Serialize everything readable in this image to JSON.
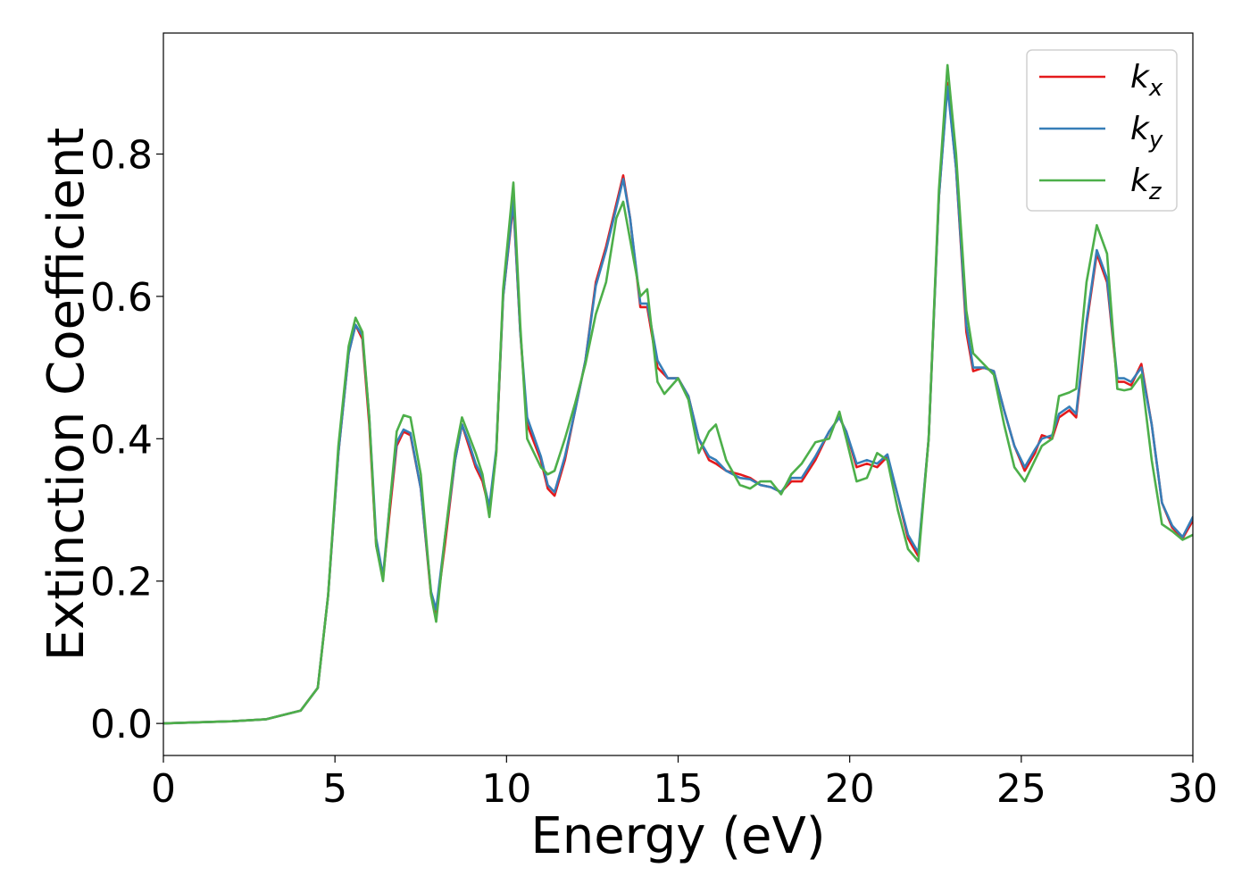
{
  "chart_data": {
    "type": "line",
    "title": "",
    "xlabel": "Energy (eV)",
    "ylabel": "Extinction Coefficient",
    "xlim": [
      0,
      30
    ],
    "ylim": [
      -0.045,
      0.97
    ],
    "xticks": [
      0,
      5,
      10,
      15,
      20,
      25,
      30
    ],
    "xtick_labels": [
      "0",
      "5",
      "10",
      "15",
      "20",
      "25",
      "30"
    ],
    "yticks": [
      0.0,
      0.2,
      0.4,
      0.6,
      0.8
    ],
    "ytick_labels": [
      "0.0",
      "0.2",
      "0.4",
      "0.6",
      "0.8"
    ],
    "grid": false,
    "legend_position": "top-right",
    "series": [
      {
        "name": "k_x",
        "legend_base": "k",
        "legend_sub": "x",
        "color": "#e41a1c",
        "points": [
          [
            0,
            0
          ],
          [
            2,
            0.003
          ],
          [
            3,
            0.006
          ],
          [
            4,
            0.018
          ],
          [
            4.5,
            0.05
          ],
          [
            4.8,
            0.18
          ],
          [
            5.1,
            0.38
          ],
          [
            5.4,
            0.52
          ],
          [
            5.6,
            0.56
          ],
          [
            5.8,
            0.54
          ],
          [
            6.0,
            0.42
          ],
          [
            6.2,
            0.25
          ],
          [
            6.4,
            0.205
          ],
          [
            6.6,
            0.3
          ],
          [
            6.8,
            0.39
          ],
          [
            7.0,
            0.41
          ],
          [
            7.2,
            0.405
          ],
          [
            7.5,
            0.33
          ],
          [
            7.8,
            0.18
          ],
          [
            7.95,
            0.155
          ],
          [
            8.2,
            0.25
          ],
          [
            8.5,
            0.37
          ],
          [
            8.7,
            0.42
          ],
          [
            8.9,
            0.39
          ],
          [
            9.1,
            0.36
          ],
          [
            9.3,
            0.34
          ],
          [
            9.5,
            0.3
          ],
          [
            9.7,
            0.38
          ],
          [
            9.9,
            0.6
          ],
          [
            10.2,
            0.73
          ],
          [
            10.4,
            0.55
          ],
          [
            10.6,
            0.42
          ],
          [
            11.0,
            0.37
          ],
          [
            11.2,
            0.33
          ],
          [
            11.4,
            0.32
          ],
          [
            11.7,
            0.37
          ],
          [
            12.0,
            0.44
          ],
          [
            12.3,
            0.51
          ],
          [
            12.6,
            0.62
          ],
          [
            12.9,
            0.67
          ],
          [
            13.2,
            0.73
          ],
          [
            13.4,
            0.77
          ],
          [
            13.6,
            0.71
          ],
          [
            13.9,
            0.585
          ],
          [
            14.1,
            0.585
          ],
          [
            14.4,
            0.5
          ],
          [
            14.7,
            0.485
          ],
          [
            15.0,
            0.485
          ],
          [
            15.3,
            0.46
          ],
          [
            15.6,
            0.4
          ],
          [
            15.9,
            0.37
          ],
          [
            16.1,
            0.365
          ],
          [
            16.4,
            0.355
          ],
          [
            16.8,
            0.35
          ],
          [
            17.1,
            0.345
          ],
          [
            17.4,
            0.335
          ],
          [
            17.7,
            0.332
          ],
          [
            18.0,
            0.325
          ],
          [
            18.3,
            0.34
          ],
          [
            18.6,
            0.34
          ],
          [
            19.0,
            0.37
          ],
          [
            19.4,
            0.41
          ],
          [
            19.7,
            0.43
          ],
          [
            19.9,
            0.41
          ],
          [
            20.2,
            0.36
          ],
          [
            20.5,
            0.365
          ],
          [
            20.8,
            0.36
          ],
          [
            21.1,
            0.375
          ],
          [
            21.4,
            0.32
          ],
          [
            21.7,
            0.26
          ],
          [
            22.0,
            0.235
          ],
          [
            22.3,
            0.4
          ],
          [
            22.6,
            0.74
          ],
          [
            22.85,
            0.9
          ],
          [
            23.1,
            0.78
          ],
          [
            23.4,
            0.55
          ],
          [
            23.6,
            0.495
          ],
          [
            23.9,
            0.5
          ],
          [
            24.2,
            0.495
          ],
          [
            24.5,
            0.44
          ],
          [
            24.8,
            0.39
          ],
          [
            25.1,
            0.355
          ],
          [
            25.4,
            0.38
          ],
          [
            25.6,
            0.405
          ],
          [
            25.9,
            0.4
          ],
          [
            26.1,
            0.43
          ],
          [
            26.4,
            0.44
          ],
          [
            26.6,
            0.43
          ],
          [
            26.9,
            0.56
          ],
          [
            27.2,
            0.66
          ],
          [
            27.5,
            0.62
          ],
          [
            27.8,
            0.48
          ],
          [
            28.0,
            0.48
          ],
          [
            28.2,
            0.475
          ],
          [
            28.5,
            0.505
          ],
          [
            28.8,
            0.42
          ],
          [
            29.1,
            0.31
          ],
          [
            29.4,
            0.275
          ],
          [
            29.7,
            0.26
          ],
          [
            30.0,
            0.285
          ]
        ]
      },
      {
        "name": "k_y",
        "legend_base": "k",
        "legend_sub": "y",
        "color": "#377eb8",
        "points": [
          [
            0,
            0
          ],
          [
            2,
            0.003
          ],
          [
            3,
            0.006
          ],
          [
            4,
            0.018
          ],
          [
            4.5,
            0.05
          ],
          [
            4.8,
            0.18
          ],
          [
            5.1,
            0.38
          ],
          [
            5.4,
            0.52
          ],
          [
            5.6,
            0.56
          ],
          [
            5.8,
            0.545
          ],
          [
            6.0,
            0.43
          ],
          [
            6.2,
            0.26
          ],
          [
            6.4,
            0.207
          ],
          [
            6.6,
            0.31
          ],
          [
            6.8,
            0.395
          ],
          [
            7.0,
            0.413
          ],
          [
            7.2,
            0.408
          ],
          [
            7.5,
            0.33
          ],
          [
            7.8,
            0.185
          ],
          [
            7.95,
            0.16
          ],
          [
            8.2,
            0.26
          ],
          [
            8.5,
            0.37
          ],
          [
            8.7,
            0.42
          ],
          [
            8.9,
            0.395
          ],
          [
            9.1,
            0.365
          ],
          [
            9.3,
            0.345
          ],
          [
            9.5,
            0.305
          ],
          [
            9.7,
            0.385
          ],
          [
            9.9,
            0.6
          ],
          [
            10.2,
            0.735
          ],
          [
            10.4,
            0.55
          ],
          [
            10.6,
            0.43
          ],
          [
            11.0,
            0.375
          ],
          [
            11.2,
            0.335
          ],
          [
            11.4,
            0.325
          ],
          [
            11.7,
            0.375
          ],
          [
            12.0,
            0.44
          ],
          [
            12.3,
            0.51
          ],
          [
            12.6,
            0.615
          ],
          [
            12.9,
            0.665
          ],
          [
            13.2,
            0.725
          ],
          [
            13.4,
            0.765
          ],
          [
            13.6,
            0.71
          ],
          [
            13.9,
            0.59
          ],
          [
            14.1,
            0.59
          ],
          [
            14.4,
            0.51
          ],
          [
            14.7,
            0.485
          ],
          [
            15.0,
            0.485
          ],
          [
            15.3,
            0.46
          ],
          [
            15.6,
            0.4
          ],
          [
            15.9,
            0.375
          ],
          [
            16.1,
            0.37
          ],
          [
            16.4,
            0.355
          ],
          [
            16.8,
            0.345
          ],
          [
            17.1,
            0.343
          ],
          [
            17.4,
            0.335
          ],
          [
            17.7,
            0.332
          ],
          [
            18.0,
            0.325
          ],
          [
            18.3,
            0.345
          ],
          [
            18.6,
            0.345
          ],
          [
            19.0,
            0.375
          ],
          [
            19.4,
            0.41
          ],
          [
            19.7,
            0.43
          ],
          [
            19.9,
            0.41
          ],
          [
            20.2,
            0.365
          ],
          [
            20.5,
            0.37
          ],
          [
            20.8,
            0.365
          ],
          [
            21.1,
            0.378
          ],
          [
            21.4,
            0.32
          ],
          [
            21.7,
            0.265
          ],
          [
            22.0,
            0.24
          ],
          [
            22.3,
            0.4
          ],
          [
            22.6,
            0.74
          ],
          [
            22.85,
            0.895
          ],
          [
            23.1,
            0.78
          ],
          [
            23.4,
            0.56
          ],
          [
            23.6,
            0.5
          ],
          [
            23.9,
            0.5
          ],
          [
            24.2,
            0.495
          ],
          [
            24.5,
            0.44
          ],
          [
            24.8,
            0.39
          ],
          [
            25.1,
            0.36
          ],
          [
            25.4,
            0.385
          ],
          [
            25.6,
            0.4
          ],
          [
            25.9,
            0.405
          ],
          [
            26.1,
            0.435
          ],
          [
            26.4,
            0.445
          ],
          [
            26.6,
            0.435
          ],
          [
            26.9,
            0.565
          ],
          [
            27.2,
            0.665
          ],
          [
            27.5,
            0.625
          ],
          [
            27.8,
            0.485
          ],
          [
            28.0,
            0.485
          ],
          [
            28.2,
            0.48
          ],
          [
            28.5,
            0.5
          ],
          [
            28.8,
            0.42
          ],
          [
            29.1,
            0.31
          ],
          [
            29.4,
            0.278
          ],
          [
            29.7,
            0.262
          ],
          [
            30.0,
            0.29
          ]
        ]
      },
      {
        "name": "k_z",
        "legend_base": "k",
        "legend_sub": "z",
        "color": "#4daf4a",
        "points": [
          [
            0,
            0
          ],
          [
            2,
            0.003
          ],
          [
            3,
            0.006
          ],
          [
            4,
            0.018
          ],
          [
            4.5,
            0.05
          ],
          [
            4.8,
            0.18
          ],
          [
            5.1,
            0.39
          ],
          [
            5.4,
            0.53
          ],
          [
            5.6,
            0.57
          ],
          [
            5.8,
            0.55
          ],
          [
            6.0,
            0.43
          ],
          [
            6.2,
            0.25
          ],
          [
            6.4,
            0.2
          ],
          [
            6.6,
            0.31
          ],
          [
            6.8,
            0.41
          ],
          [
            7.0,
            0.433
          ],
          [
            7.2,
            0.43
          ],
          [
            7.5,
            0.35
          ],
          [
            7.8,
            0.18
          ],
          [
            7.95,
            0.143
          ],
          [
            8.2,
            0.26
          ],
          [
            8.5,
            0.38
          ],
          [
            8.7,
            0.43
          ],
          [
            8.9,
            0.405
          ],
          [
            9.1,
            0.38
          ],
          [
            9.3,
            0.35
          ],
          [
            9.5,
            0.29
          ],
          [
            9.7,
            0.38
          ],
          [
            9.9,
            0.61
          ],
          [
            10.2,
            0.76
          ],
          [
            10.4,
            0.56
          ],
          [
            10.6,
            0.4
          ],
          [
            11.0,
            0.36
          ],
          [
            11.2,
            0.35
          ],
          [
            11.4,
            0.355
          ],
          [
            11.7,
            0.4
          ],
          [
            12.0,
            0.45
          ],
          [
            12.3,
            0.505
          ],
          [
            12.6,
            0.575
          ],
          [
            12.9,
            0.62
          ],
          [
            13.2,
            0.71
          ],
          [
            13.4,
            0.733
          ],
          [
            13.6,
            0.68
          ],
          [
            13.9,
            0.6
          ],
          [
            14.1,
            0.61
          ],
          [
            14.4,
            0.48
          ],
          [
            14.6,
            0.463
          ],
          [
            15.0,
            0.485
          ],
          [
            15.3,
            0.455
          ],
          [
            15.6,
            0.38
          ],
          [
            15.9,
            0.41
          ],
          [
            16.1,
            0.42
          ],
          [
            16.4,
            0.37
          ],
          [
            16.8,
            0.335
          ],
          [
            17.1,
            0.33
          ],
          [
            17.4,
            0.34
          ],
          [
            17.7,
            0.34
          ],
          [
            18.0,
            0.322
          ],
          [
            18.3,
            0.35
          ],
          [
            18.6,
            0.365
          ],
          [
            19.0,
            0.395
          ],
          [
            19.4,
            0.4
          ],
          [
            19.7,
            0.438
          ],
          [
            19.9,
            0.4
          ],
          [
            20.2,
            0.34
          ],
          [
            20.5,
            0.345
          ],
          [
            20.8,
            0.38
          ],
          [
            21.1,
            0.37
          ],
          [
            21.4,
            0.3
          ],
          [
            21.7,
            0.245
          ],
          [
            22.0,
            0.228
          ],
          [
            22.3,
            0.4
          ],
          [
            22.6,
            0.75
          ],
          [
            22.85,
            0.925
          ],
          [
            23.1,
            0.8
          ],
          [
            23.4,
            0.58
          ],
          [
            23.6,
            0.52
          ],
          [
            23.9,
            0.505
          ],
          [
            24.2,
            0.49
          ],
          [
            24.5,
            0.42
          ],
          [
            24.8,
            0.36
          ],
          [
            25.1,
            0.34
          ],
          [
            25.4,
            0.37
          ],
          [
            25.6,
            0.39
          ],
          [
            25.9,
            0.4
          ],
          [
            26.1,
            0.46
          ],
          [
            26.4,
            0.465
          ],
          [
            26.6,
            0.47
          ],
          [
            26.9,
            0.62
          ],
          [
            27.2,
            0.7
          ],
          [
            27.5,
            0.66
          ],
          [
            27.8,
            0.47
          ],
          [
            28.0,
            0.468
          ],
          [
            28.2,
            0.47
          ],
          [
            28.5,
            0.49
          ],
          [
            28.8,
            0.37
          ],
          [
            29.1,
            0.28
          ],
          [
            29.4,
            0.27
          ],
          [
            29.7,
            0.258
          ],
          [
            30.0,
            0.265
          ]
        ]
      }
    ]
  }
}
